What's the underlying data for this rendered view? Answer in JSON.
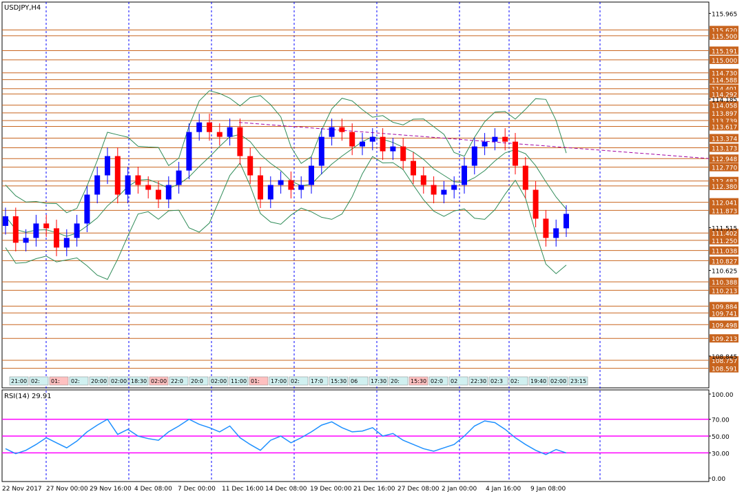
{
  "chart_data": [
    {
      "type": "candlestick",
      "title": "USDJPY,H4",
      "symbol": "USDJPY",
      "timeframe": "H4",
      "ylim": [
        108.4,
        116.1
      ],
      "y_tick_labels": [
        "115.965",
        "114.185",
        "111.515",
        "110.625",
        "108.845"
      ],
      "x_tick_labels": [
        "22 Nov 2017",
        "27 Nov 00:00",
        "29 Nov 16:00",
        "4 Dec 08:00",
        "7 Dec 00:00",
        "11 Dec 16:00",
        "14 Dec 08:00",
        "19 Dec 00:00",
        "21 Dec 16:00",
        "27 Dec 08:00",
        "2 Jan 00:00",
        "4 Jan 16:00",
        "9 Jan 08:00"
      ],
      "horizontal_levels": [
        "115.620",
        "115.500",
        "115.191",
        "115.000",
        "114.730",
        "114.588",
        "114.401",
        "114.292",
        "114.058",
        "113.897",
        "113.739",
        "113.617",
        "113.374",
        "113.173",
        "112.948",
        "112.770",
        "112.483",
        "112.380",
        "112.041",
        "111.873",
        "111.402",
        "111.250",
        "111.038",
        "110.827",
        "110.388",
        "110.213",
        "109.884",
        "109.741",
        "109.498",
        "109.213",
        "108.757",
        "108.591"
      ],
      "close_series": [
        111.75,
        111.2,
        111.3,
        111.6,
        111.5,
        111.1,
        111.3,
        111.6,
        112.2,
        112.6,
        113.0,
        112.2,
        112.6,
        112.4,
        112.3,
        112.1,
        112.4,
        112.7,
        113.5,
        113.7,
        113.5,
        113.4,
        113.6,
        113.0,
        112.6,
        112.1,
        112.4,
        112.5,
        112.3,
        112.4,
        112.8,
        113.4,
        113.6,
        113.5,
        113.2,
        113.3,
        113.4,
        113.1,
        113.2,
        112.9,
        112.6,
        112.4,
        112.2,
        112.3,
        112.4,
        112.8,
        113.2,
        113.3,
        113.4,
        113.3,
        112.8,
        112.3,
        111.7,
        111.3,
        111.5,
        111.8
      ],
      "trendlines": [
        {
          "from": [
            "11 Dec 16:00",
            113.7
          ],
          "to": [
            "9 Jan 08:00",
            112.95
          ]
        }
      ],
      "series": [
        {
          "name": "",
          "kind": "bollinger_middle"
        },
        {
          "name": "",
          "kind": "bollinger_upper"
        },
        {
          "name": "",
          "kind": "bollinger_lower"
        }
      ],
      "time_labels": [
        "21:00",
        "02:",
        "01:",
        "02:",
        "20:00",
        "02:00",
        "18:30",
        "02:00",
        "22:0",
        "20:0",
        "02:00",
        "11:00",
        "01:",
        "17:00",
        "02:",
        "17:0",
        "15:30",
        "06",
        "17:30",
        "20:",
        "15:30",
        "02:0",
        "02",
        "22:30",
        "02:3",
        "02:",
        "19:40",
        "02:00",
        "23:15"
      ],
      "colors": {
        "bull": "#0000ff",
        "bear": "#ff0000",
        "level": "#c8641e",
        "grid": "#0000ff",
        "band": "#2e8b57",
        "trend": "#a000a0"
      }
    },
    {
      "type": "line",
      "title": "RSI(14) 29.91",
      "indicator": "RSI",
      "period": 14,
      "last_value": 29.91,
      "ylim": [
        0,
        100
      ],
      "y_tick_labels": [
        "100.00",
        "70.00",
        "50.00",
        "30.00",
        "0.00"
      ],
      "levels": [
        70,
        50,
        30
      ],
      "values": [
        35,
        29,
        33,
        40,
        48,
        42,
        36,
        44,
        55,
        63,
        70,
        52,
        58,
        50,
        47,
        45,
        55,
        62,
        70,
        64,
        60,
        55,
        62,
        48,
        40,
        33,
        45,
        50,
        42,
        48,
        55,
        63,
        67,
        60,
        55,
        56,
        60,
        50,
        53,
        45,
        40,
        35,
        32,
        36,
        40,
        50,
        62,
        68,
        66,
        58,
        48,
        40,
        33,
        28,
        34,
        30
      ],
      "colors": {
        "line": "#1e90ff",
        "level": "#ff00ff"
      }
    }
  ]
}
